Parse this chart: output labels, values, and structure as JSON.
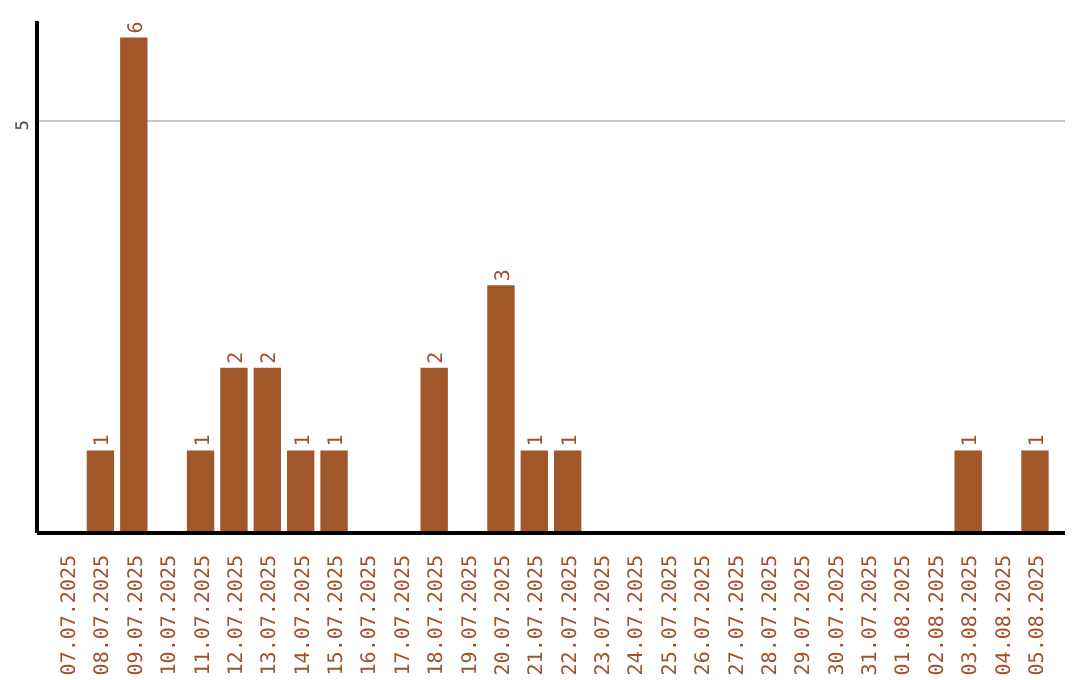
{
  "chart_data": {
    "type": "bar",
    "categories": [
      "07.07.2025",
      "08.07.2025",
      "09.07.2025",
      "10.07.2025",
      "11.07.2025",
      "12.07.2025",
      "13.07.2025",
      "14.07.2025",
      "15.07.2025",
      "16.07.2025",
      "17.07.2025",
      "18.07.2025",
      "19.07.2025",
      "20.07.2025",
      "21.07.2025",
      "22.07.2025",
      "23.07.2025",
      "24.07.2025",
      "25.07.2025",
      "26.07.2025",
      "27.07.2025",
      "28.07.2025",
      "29.07.2025",
      "30.07.2025",
      "31.07.2025",
      "01.08.2025",
      "02.08.2025",
      "03.08.2025",
      "04.08.2025",
      "05.08.2025"
    ],
    "values": [
      0,
      1,
      6,
      0,
      1,
      2,
      2,
      1,
      1,
      0,
      0,
      2,
      0,
      3,
      1,
      1,
      0,
      0,
      0,
      0,
      0,
      0,
      0,
      0,
      0,
      0,
      0,
      1,
      0,
      1
    ],
    "value_labels": [
      null,
      "1",
      "6",
      null,
      "1",
      "2",
      "2",
      "1",
      "1",
      null,
      null,
      "2",
      null,
      "3",
      "1",
      "1",
      null,
      null,
      null,
      null,
      null,
      null,
      null,
      null,
      null,
      null,
      null,
      "1",
      null,
      "1"
    ],
    "color": "#a0572a",
    "ylim": [
      0,
      6.2
    ],
    "yticks": [
      5
    ],
    "grid": "y"
  }
}
